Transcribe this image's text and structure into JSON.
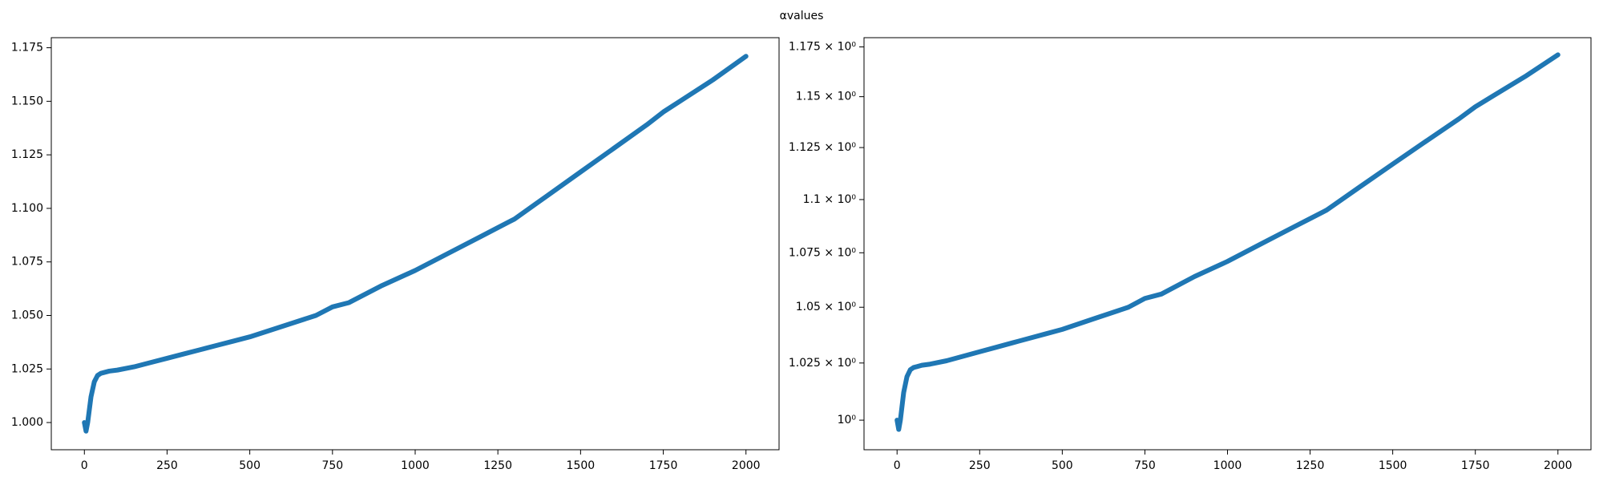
{
  "title": "αvalues",
  "chart_data": [
    {
      "type": "line",
      "yscale": "linear",
      "xlim": [
        -100,
        2100
      ],
      "ylim": [
        0.9873,
        1.1797
      ],
      "xticks": [
        0,
        250,
        500,
        750,
        1000,
        1250,
        1500,
        1750,
        2000
      ],
      "yticks": [
        {
          "value": 1,
          "label": "1.000"
        },
        1.025,
        {
          "value": 1.05,
          "label": "1.050"
        },
        1.075,
        {
          "value": 1.1,
          "label": "1.100"
        },
        1.125,
        {
          "value": 1.15,
          "label": "1.150"
        },
        1.175
      ],
      "x": [
        0,
        5,
        10,
        20,
        30,
        40,
        50,
        75,
        100,
        150,
        200,
        250,
        300,
        350,
        400,
        450,
        500,
        600,
        700,
        750,
        800,
        900,
        1000,
        1100,
        1200,
        1250,
        1300,
        1400,
        1500,
        1600,
        1700,
        1750,
        1800,
        1900,
        2000
      ],
      "color": "#1f77b4",
      "values": [
        1.0,
        0.996,
        1.0,
        1.012,
        1.019,
        1.022,
        1.023,
        1.024,
        1.0245,
        1.026,
        1.028,
        1.03,
        1.032,
        1.034,
        1.036,
        1.038,
        1.04,
        1.045,
        1.05,
        1.054,
        1.056,
        1.064,
        1.071,
        1.079,
        1.087,
        1.091,
        1.095,
        1.106,
        1.117,
        1.128,
        1.139,
        1.145,
        1.15,
        1.16,
        1.171
      ]
    },
    {
      "type": "line",
      "yscale": "log",
      "xlim": [
        -100,
        2100
      ],
      "ylim": [
        0.9873,
        1.1797
      ],
      "xticks": [
        0,
        250,
        500,
        750,
        1000,
        1250,
        1500,
        1750,
        2000
      ],
      "yticks": [
        {
          "value": 1,
          "label": "10⁰"
        },
        {
          "value": 1.025,
          "label": "1.025 × 10⁰"
        },
        {
          "value": 1.05,
          "label": "1.05 × 10⁰"
        },
        {
          "value": 1.075,
          "label": "1.075 × 10⁰"
        },
        {
          "value": 1.1,
          "label": "1.1 × 10⁰"
        },
        {
          "value": 1.125,
          "label": "1.125 × 10⁰"
        },
        {
          "value": 1.15,
          "label": "1.15 × 10⁰"
        },
        {
          "value": 1.175,
          "label": "1.175 × 10⁰"
        }
      ],
      "x": [
        0,
        5,
        10,
        20,
        30,
        40,
        50,
        75,
        100,
        150,
        200,
        250,
        300,
        350,
        400,
        450,
        500,
        600,
        700,
        750,
        800,
        900,
        1000,
        1100,
        1200,
        1250,
        1300,
        1400,
        1500,
        1600,
        1700,
        1750,
        1800,
        1900,
        2000
      ],
      "color": "#1f77b4",
      "values": [
        1.0,
        0.996,
        1.0,
        1.012,
        1.019,
        1.022,
        1.023,
        1.024,
        1.0245,
        1.026,
        1.028,
        1.03,
        1.032,
        1.034,
        1.036,
        1.038,
        1.04,
        1.045,
        1.05,
        1.054,
        1.056,
        1.064,
        1.071,
        1.079,
        1.087,
        1.091,
        1.095,
        1.106,
        1.117,
        1.128,
        1.139,
        1.145,
        1.15,
        1.16,
        1.171
      ]
    }
  ]
}
